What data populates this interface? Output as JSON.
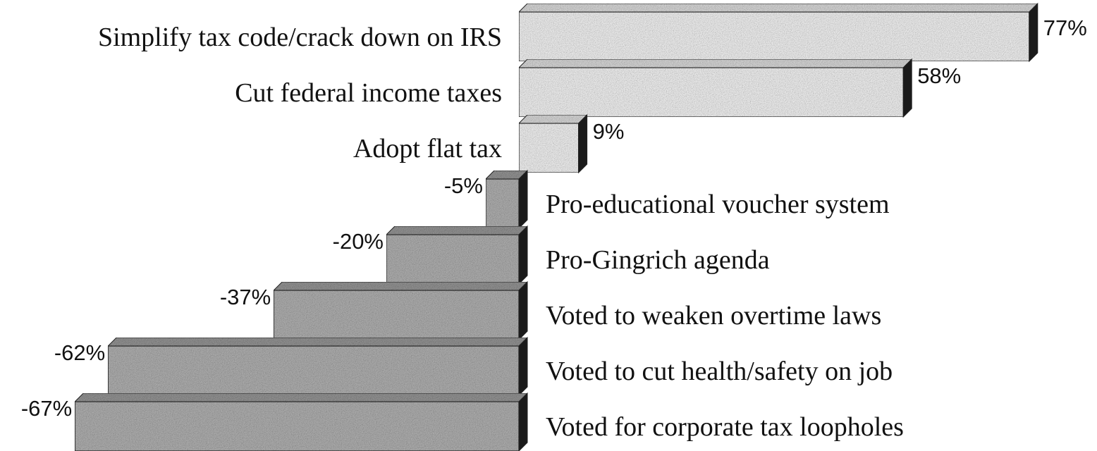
{
  "chart_data": {
    "type": "bar",
    "orientation": "horizontal",
    "style": "3d-stippled",
    "title": "",
    "xlabel": "",
    "ylabel": "",
    "xlim": [
      -67,
      77
    ],
    "grid": false,
    "legend": "none",
    "categories": [
      "Simplify tax code/crack down on IRS",
      "Cut federal income taxes",
      "Adopt flat tax",
      "Pro-educational voucher system",
      "Pro-Gingrich agenda",
      "Voted to weaken overtime laws",
      "Voted to cut health/safety on job",
      "Voted for corporate tax loopholes"
    ],
    "values": [
      77,
      58,
      9,
      -5,
      -20,
      -37,
      -62,
      -67
    ],
    "value_labels": [
      "77%",
      "58%",
      "9%",
      "-5%",
      "-20%",
      "-37%",
      "-62%",
      "-67%"
    ],
    "colors": {
      "positive_face": "#e8e8e8",
      "positive_top": "#cfcfcf",
      "negative_face": "#a9a9a9",
      "negative_top": "#8e8e8e",
      "side": "#1a1a1a",
      "outline": "#222222"
    }
  }
}
